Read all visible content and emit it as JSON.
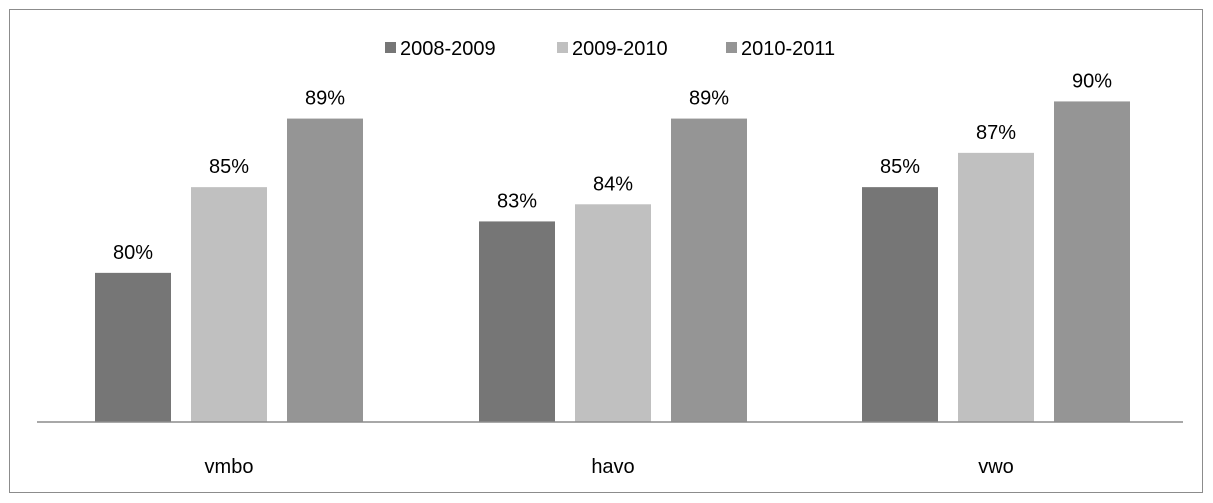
{
  "chart_data": {
    "type": "bar",
    "categories": [
      "vmbo",
      "havo",
      "vwo"
    ],
    "series": [
      {
        "name": "2008-2009",
        "values": [
          80,
          83,
          85
        ],
        "color": "#767676"
      },
      {
        "name": "2009-2010",
        "values": [
          85,
          84,
          87
        ],
        "color": "#c0c0c0"
      },
      {
        "name": "2010-2011",
        "values": [
          89,
          89,
          90
        ],
        "color": "#959595"
      }
    ],
    "value_suffix": "%",
    "ylim": [
      71.3,
      93
    ],
    "grid": false,
    "legend_position": "top",
    "axis_color": "#8c8c8c"
  }
}
